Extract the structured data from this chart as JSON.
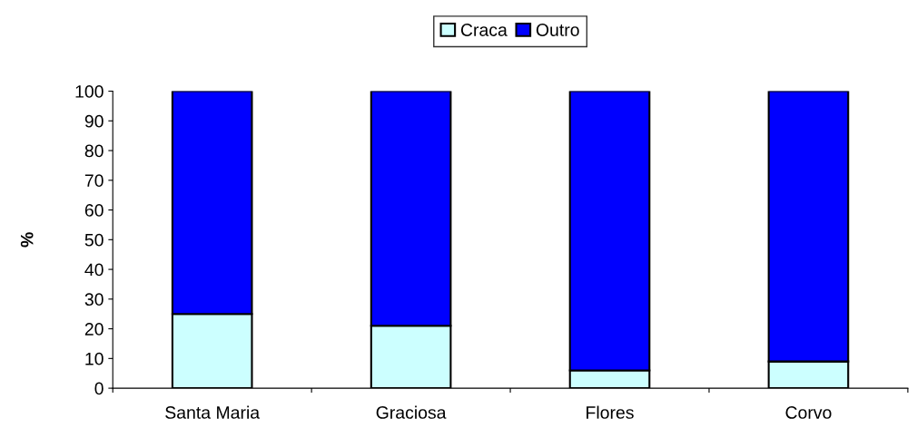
{
  "chart_data": {
    "type": "bar",
    "stacked": true,
    "ylabel": "%",
    "categories": [
      "Santa Maria",
      "Graciosa",
      "Flores",
      "Corvo"
    ],
    "series": [
      {
        "name": "Craca",
        "color": "#ccffff",
        "values": [
          25,
          21,
          6,
          9
        ]
      },
      {
        "name": "Outro",
        "color": "#0000ff",
        "values": [
          75,
          79,
          94,
          91
        ]
      }
    ],
    "ylim": [
      0,
      100
    ],
    "yticks": [
      0,
      10,
      20,
      30,
      40,
      50,
      60,
      70,
      80,
      90,
      100
    ],
    "grid": false,
    "legend": "top"
  }
}
